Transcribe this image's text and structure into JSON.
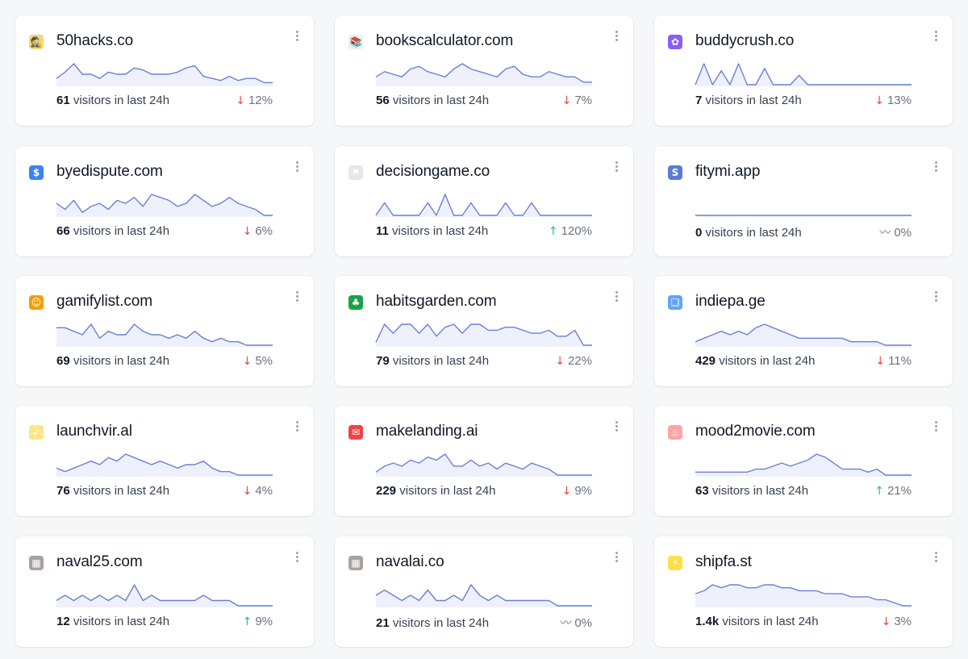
{
  "cards": [
    {
      "title": "50hacks.co",
      "icon": "hacker-emoji-icon",
      "icon_glyph": "🕵",
      "icon_bg": "#f5d76e",
      "visitors": "61",
      "visitors_label": "visitors in last 24h",
      "trend": "down",
      "trend_icon": "↓",
      "change": "12%",
      "spark": [
        3,
        6,
        10,
        5,
        5,
        3,
        6,
        5,
        5,
        8,
        7,
        5,
        5,
        5,
        6,
        8,
        9,
        4,
        3,
        2,
        4,
        2,
        3,
        3,
        1,
        1
      ]
    },
    {
      "title": "bookscalculator.com",
      "icon": "books-emoji-icon",
      "icon_glyph": "📚",
      "icon_bg": "#e9f2e8",
      "visitors": "56",
      "visitors_label": "visitors in last 24h",
      "trend": "down",
      "trend_icon": "↓",
      "change": "7%",
      "spark": [
        3,
        5,
        4,
        3,
        6,
        7,
        5,
        4,
        3,
        6,
        8,
        6,
        5,
        4,
        3,
        6,
        7,
        4,
        3,
        3,
        5,
        4,
        3,
        3,
        1,
        1
      ]
    },
    {
      "title": "buddycrush.co",
      "icon": "buddy-emoji-icon",
      "icon_glyph": "✿",
      "icon_bg": "#8b5cf6",
      "visitors": "7",
      "visitors_label": "visitors in last 24h",
      "trend": "down",
      "trend_icon": "↓",
      "change": "13%",
      "spark": [
        0,
        9,
        0,
        6,
        0,
        9,
        0,
        0,
        7,
        0,
        0,
        0,
        4,
        0,
        0,
        0,
        0,
        0,
        0,
        0,
        0,
        0,
        0,
        0,
        0,
        0
      ]
    },
    {
      "title": "byedispute.com",
      "icon": "shield-dollar-icon",
      "icon_glyph": "$",
      "icon_bg": "#3b82f6",
      "visitors": "66",
      "visitors_label": "visitors in last 24h",
      "trend": "down",
      "trend_icon": "↓",
      "change": "6%",
      "spark": [
        4,
        2,
        5,
        1,
        3,
        4,
        2,
        5,
        4,
        6,
        3,
        7,
        6,
        5,
        3,
        4,
        7,
        5,
        3,
        4,
        6,
        4,
        3,
        2,
        0,
        0
      ]
    },
    {
      "title": "decisiongame.co",
      "icon": "figure-emoji-icon",
      "icon_glyph": "⚑",
      "icon_bg": "#e5e7eb",
      "visitors": "11",
      "visitors_label": "visitors in last 24h",
      "trend": "up",
      "trend_icon": "↑",
      "change": "120%",
      "spark": [
        0,
        3,
        0,
        0,
        0,
        0,
        3,
        0,
        5,
        0,
        0,
        3,
        0,
        0,
        0,
        3,
        0,
        0,
        3,
        0,
        0,
        0,
        0,
        0,
        0,
        0
      ]
    },
    {
      "title": "fitymi.app",
      "icon": "s-logo-icon",
      "icon_glyph": "S",
      "icon_bg": "#5b7bd5",
      "visitors": "0",
      "visitors_label": "visitors in last 24h",
      "trend": "flat",
      "trend_icon": "〰",
      "change": "0%",
      "spark": [
        0,
        0,
        0,
        0,
        0,
        0,
        0,
        0,
        0,
        0,
        0,
        0,
        0,
        0,
        0,
        0,
        0,
        0,
        0,
        0,
        0,
        0,
        0,
        0,
        0,
        0
      ]
    },
    {
      "title": "gamifylist.com",
      "icon": "character-emoji-icon",
      "icon_glyph": "☺",
      "icon_bg": "#f59e0b",
      "visitors": "69",
      "visitors_label": "visitors in last 24h",
      "trend": "down",
      "trend_icon": "↓",
      "change": "5%",
      "spark": [
        5,
        5,
        4,
        3,
        6,
        2,
        4,
        3,
        3,
        6,
        4,
        3,
        3,
        2,
        3,
        2,
        4,
        2,
        1,
        2,
        1,
        1,
        0,
        0,
        0,
        0
      ]
    },
    {
      "title": "habitsgarden.com",
      "icon": "plant-emoji-icon",
      "icon_glyph": "♣",
      "icon_bg": "#16a34a",
      "visitors": "79",
      "visitors_label": "visitors in last 24h",
      "trend": "down",
      "trend_icon": "↓",
      "change": "22%",
      "spark": [
        1,
        7,
        4,
        7,
        7,
        4,
        7,
        3,
        6,
        7,
        4,
        7,
        7,
        5,
        5,
        6,
        6,
        5,
        4,
        4,
        5,
        3,
        3,
        5,
        0,
        0
      ]
    },
    {
      "title": "indiepa.ge",
      "icon": "pages-emoji-icon",
      "icon_glyph": "❑",
      "icon_bg": "#60a5fa",
      "visitors": "429",
      "visitors_label": "visitors in last 24h",
      "trend": "down",
      "trend_icon": "↓",
      "change": "11%",
      "spark": [
        1,
        2,
        3,
        4,
        3,
        4,
        3,
        5,
        6,
        5,
        4,
        3,
        2,
        2,
        2,
        2,
        2,
        2,
        1,
        1,
        1,
        1,
        0,
        0,
        0,
        0
      ]
    },
    {
      "title": "launchvir.al",
      "icon": "rocket-emoji-icon",
      "icon_glyph": "➶",
      "icon_bg": "#fde68a",
      "visitors": "76",
      "visitors_label": "visitors in last 24h",
      "trend": "down",
      "trend_icon": "↓",
      "change": "4%",
      "spark": [
        2,
        1,
        2,
        3,
        4,
        3,
        5,
        4,
        6,
        5,
        4,
        3,
        4,
        3,
        2,
        3,
        3,
        4,
        2,
        1,
        1,
        0,
        0,
        0,
        0,
        0
      ]
    },
    {
      "title": "makelanding.ai",
      "icon": "envelope-logo-icon",
      "icon_glyph": "✉",
      "icon_bg": "#ef4444",
      "visitors": "229",
      "visitors_label": "visitors in last 24h",
      "trend": "down",
      "trend_icon": "↓",
      "change": "9%",
      "spark": [
        1,
        3,
        4,
        3,
        5,
        4,
        6,
        5,
        7,
        3,
        3,
        5,
        3,
        4,
        2,
        4,
        3,
        2,
        4,
        3,
        2,
        0,
        0,
        0,
        0,
        0
      ]
    },
    {
      "title": "mood2movie.com",
      "icon": "popcorn-emoji-icon",
      "icon_glyph": "♨",
      "icon_bg": "#fca5a5",
      "visitors": "63",
      "visitors_label": "visitors in last 24h",
      "trend": "up",
      "trend_icon": "↑",
      "change": "21%",
      "spark": [
        1,
        1,
        1,
        1,
        1,
        1,
        1,
        2,
        2,
        3,
        4,
        3,
        4,
        5,
        7,
        6,
        4,
        2,
        2,
        2,
        1,
        2,
        0,
        0,
        0,
        0
      ]
    },
    {
      "title": "naval25.com",
      "icon": "image-thumb-icon",
      "icon_glyph": "▦",
      "icon_bg": "#a8a29e",
      "visitors": "12",
      "visitors_label": "visitors in last 24h",
      "trend": "up",
      "trend_icon": "↑",
      "change": "9%",
      "spark": [
        1,
        2,
        1,
        2,
        1,
        2,
        1,
        2,
        1,
        4,
        1,
        2,
        1,
        1,
        1,
        1,
        1,
        2,
        1,
        1,
        1,
        0,
        0,
        0,
        0,
        0
      ]
    },
    {
      "title": "navalai.co",
      "icon": "image-thumb-icon",
      "icon_glyph": "▦",
      "icon_bg": "#a8a29e",
      "visitors": "21",
      "visitors_label": "visitors in last 24h",
      "trend": "flat",
      "trend_icon": "〰",
      "change": "0%",
      "spark": [
        2,
        3,
        2,
        1,
        2,
        1,
        3,
        1,
        1,
        2,
        1,
        4,
        2,
        1,
        2,
        1,
        1,
        1,
        1,
        1,
        1,
        0,
        0,
        0,
        0,
        0
      ]
    },
    {
      "title": "shipfa.st",
      "icon": "lightning-emoji-icon",
      "icon_glyph": "⚡",
      "icon_bg": "#fde047",
      "visitors": "1.4k",
      "visitors_label": "visitors in last 24h",
      "trend": "down",
      "trend_icon": "↓",
      "change": "3%",
      "spark": [
        4,
        5,
        7,
        6,
        7,
        7,
        6,
        6,
        7,
        7,
        6,
        6,
        5,
        5,
        5,
        4,
        4,
        4,
        3,
        3,
        3,
        2,
        2,
        1,
        0,
        0
      ]
    }
  ],
  "theme": {
    "line_color": "#6b7fd7",
    "fill_color": "#eef1fb",
    "card_bg": "#ffffff",
    "page_bg": "#f6f7f9"
  }
}
